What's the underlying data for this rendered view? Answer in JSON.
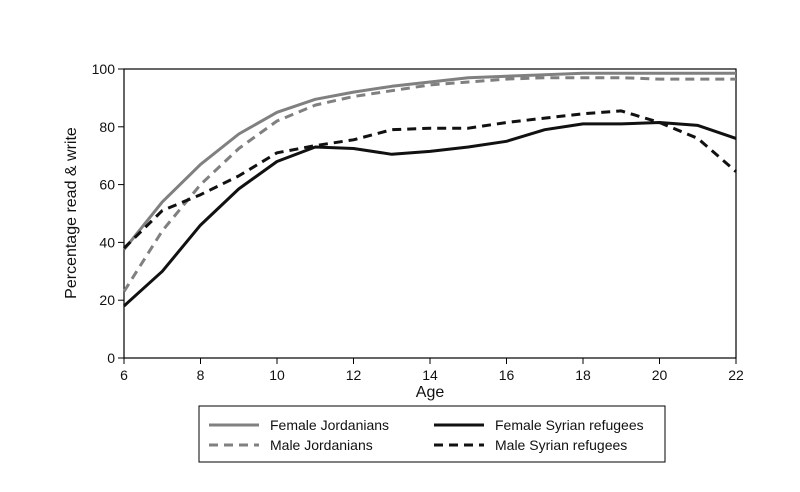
{
  "chart_data": {
    "type": "line",
    "xlabel": "Age",
    "ylabel": "Percentage read & write",
    "xlim": [
      6,
      22
    ],
    "ylim": [
      0,
      100
    ],
    "xticks": [
      6,
      8,
      10,
      12,
      14,
      16,
      18,
      20,
      22
    ],
    "yticks": [
      0,
      20,
      40,
      60,
      80,
      100
    ],
    "grid": false,
    "legend_position": "bottom",
    "x": [
      6,
      7,
      8,
      9,
      10,
      11,
      12,
      13,
      14,
      15,
      16,
      17,
      18,
      19,
      20,
      21,
      22
    ],
    "series": [
      {
        "name": "Female Jordanians",
        "color": "#808080",
        "dash": "solid",
        "values": [
          37.5,
          54,
          67,
          77.5,
          85,
          89.5,
          92,
          94,
          95.5,
          97,
          97.5,
          98,
          98.5,
          98.5,
          98.5,
          98.5,
          98.5
        ]
      },
      {
        "name": "Male Jordanians",
        "color": "#808080",
        "dash": "dashed",
        "values": [
          23,
          44,
          60,
          72.5,
          82,
          87.5,
          90.5,
          92.5,
          94.5,
          95.5,
          96.5,
          97,
          97,
          97,
          96.5,
          96.5,
          96.5
        ]
      },
      {
        "name": "Female Syrian refugees",
        "color": "#111111",
        "dash": "solid",
        "values": [
          18,
          30,
          46,
          58.5,
          68,
          73,
          72.5,
          70.5,
          71.5,
          73,
          75,
          79,
          81,
          81,
          81.5,
          80.5,
          76
        ]
      },
      {
        "name": "Male Syrian refugees",
        "color": "#111111",
        "dash": "dashed",
        "values": [
          38,
          51,
          56.5,
          63,
          71,
          73.5,
          75.5,
          79,
          79.5,
          79.5,
          81.5,
          83,
          84.5,
          85.5,
          81.5,
          76,
          64.5
        ]
      }
    ]
  }
}
